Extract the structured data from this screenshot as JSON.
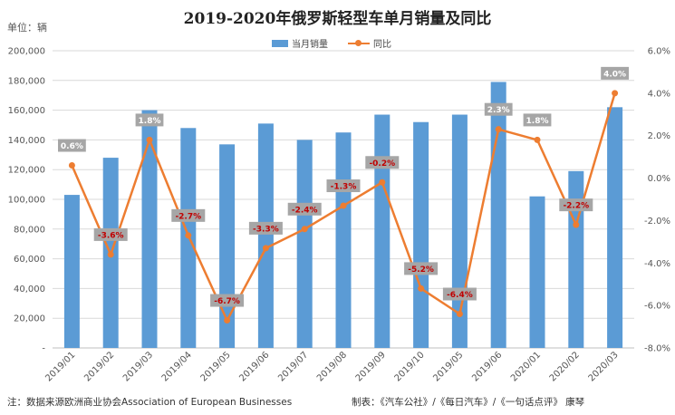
{
  "chart_data": {
    "type": "bar",
    "title": "2019-2020年俄罗斯轻型车单月销量及同比",
    "unit_label": "单位：辆",
    "categories": [
      "2019/01",
      "2019/02",
      "2019/03",
      "2019/04",
      "2019/05",
      "2019/06",
      "2019/07",
      "2019/08",
      "2019/09",
      "2019/10",
      "2019/05",
      "2019/06",
      "2020/01",
      "2020/02",
      "2020/03"
    ],
    "series": [
      {
        "name": "当月销量",
        "type": "bar",
        "axis": "left",
        "values": [
          103000,
          128000,
          160000,
          148000,
          137000,
          151000,
          140000,
          145000,
          157000,
          152000,
          157000,
          179000,
          102000,
          119000,
          162000
        ]
      },
      {
        "name": "同比",
        "type": "line",
        "axis": "right",
        "values": [
          0.6,
          -3.6,
          1.8,
          -2.7,
          -6.7,
          -3.3,
          -2.4,
          -1.3,
          -0.2,
          -5.2,
          -6.4,
          2.3,
          1.8,
          -2.2,
          4.0
        ],
        "labels": [
          "0.6%",
          "-3.6%",
          "1.8%",
          "-2.7%",
          "-6.7%",
          "-3.3%",
          "-2.4%",
          "-1.3%",
          "-0.2%",
          "-5.2%",
          "-6.4%",
          "2.3%",
          "1.8%",
          "-2.2%",
          "4.0%"
        ]
      }
    ],
    "left_axis": {
      "ylim": [
        0,
        200000
      ],
      "ticks": [
        "-",
        "20,000",
        "40,000",
        "60,000",
        "80,000",
        "100,000",
        "120,000",
        "140,000",
        "160,000",
        "180,000",
        "200,000"
      ]
    },
    "right_axis": {
      "ylim": [
        -8.0,
        6.0
      ],
      "ticks": [
        "-8.0%",
        "-6.0%",
        "-4.0%",
        "-2.0%",
        "0.0%",
        "2.0%",
        "4.0%",
        "6.0%"
      ]
    },
    "grid": true,
    "legend_position": "top-center",
    "colors": {
      "bar": "#5b9bd5",
      "line": "#ed7d31",
      "label_bg": "#a6a6a6",
      "label_text_negative": "#c00000",
      "label_text_positive": "#ffffff"
    }
  },
  "footer": {
    "note": "注：数据来源欧洲商业协会Association of European Businesses",
    "credit": "制表：《汽车公社》/《每日汽车》/《一句话点评》 康琴"
  }
}
